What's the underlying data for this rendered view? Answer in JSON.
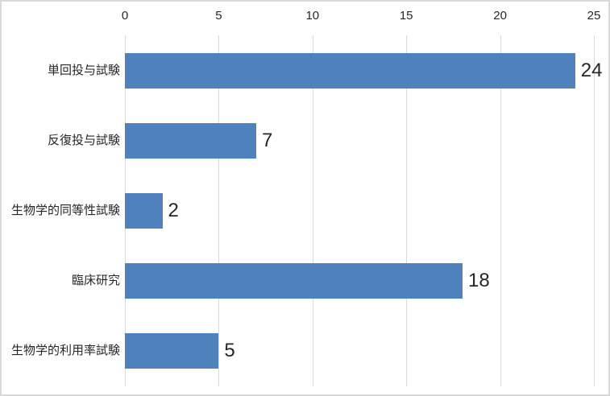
{
  "chart_data": {
    "type": "bar",
    "orientation": "horizontal",
    "title": "",
    "xlabel": "",
    "ylabel": "",
    "categories": [
      "単回投与試験",
      "反復投与試験",
      "生物学的同等性試験",
      "臨床研究",
      "生物学的利用率試験"
    ],
    "values": [
      24,
      7,
      2,
      18,
      5
    ],
    "data_labels": [
      "24",
      "7",
      "2",
      "18",
      "5"
    ],
    "x_ticks": [
      "0",
      "5",
      "10",
      "15",
      "20",
      "25"
    ],
    "xlim": [
      0,
      25
    ],
    "axis_position": "top",
    "grid": true,
    "legend": false,
    "bar_color": "#4f81bd",
    "gridline_color": "#d9d9d9",
    "border_color": "#d9d9d9",
    "text_color": "#262626",
    "background_color": "#ffffff"
  }
}
